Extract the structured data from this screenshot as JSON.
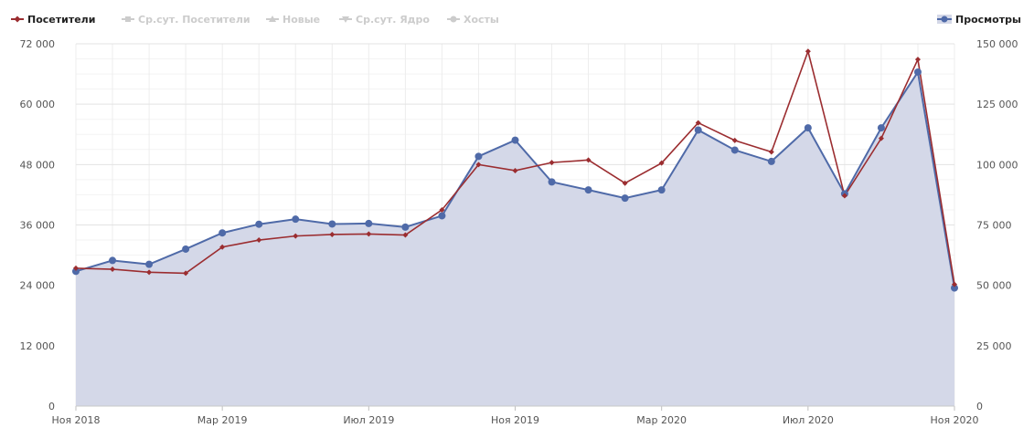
{
  "chart_data": {
    "type": "line",
    "legend_placement": "top",
    "grid": true,
    "legend": [
      {
        "name": "Посетители",
        "active": true,
        "color": "#9b2d30",
        "marker": "diamond"
      },
      {
        "name": "Ср.сут. Посетители",
        "active": false,
        "color": "#cccccc",
        "marker": "square"
      },
      {
        "name": "Новые",
        "active": false,
        "color": "#cccccc",
        "marker": "triangle"
      },
      {
        "name": "Ср.сут. Ядро",
        "active": false,
        "color": "#cccccc",
        "marker": "triangle-down"
      },
      {
        "name": "Хосты",
        "active": false,
        "color": "#cccccc",
        "marker": "circle"
      },
      {
        "name": "Просмотры",
        "active": true,
        "color": "#4f6aa8",
        "marker": "circle"
      }
    ],
    "x_labels": [
      "Ноя 2018",
      "Мар 2019",
      "Июл 2019",
      "Ноя 2019",
      "Мар 2020",
      "Июл 2020",
      "Ноя 2020"
    ],
    "y_left": {
      "min": 0,
      "max": 72000,
      "ticks": [
        "0",
        "12 000",
        "24 000",
        "36 000",
        "48 000",
        "60 000",
        "72 000"
      ]
    },
    "y_right": {
      "min": 0,
      "max": 150000,
      "ticks": [
        "0",
        "25 000",
        "50 000",
        "75 000",
        "100 000",
        "125 000",
        "150 000"
      ]
    },
    "series": [
      {
        "name": "Посетители",
        "axis": "left",
        "color": "#9b2d30",
        "values": [
          27400,
          27200,
          26600,
          26400,
          31600,
          33000,
          33800,
          34100,
          34200,
          34000,
          39000,
          48000,
          46800,
          48400,
          48900,
          44300,
          48300,
          56300,
          52800,
          50500,
          70500,
          41800,
          53200,
          68900,
          24200
        ]
      },
      {
        "name": "Просмотры",
        "axis": "right",
        "color": "#4f6aa8",
        "fill": "#d4d8e8",
        "values": [
          55800,
          60300,
          58700,
          65000,
          71700,
          75300,
          77400,
          75400,
          75600,
          74100,
          78800,
          103400,
          110100,
          92800,
          89500,
          86100,
          89500,
          114300,
          106000,
          101300,
          115200,
          87900,
          115200,
          138300,
          48900
        ]
      }
    ]
  }
}
